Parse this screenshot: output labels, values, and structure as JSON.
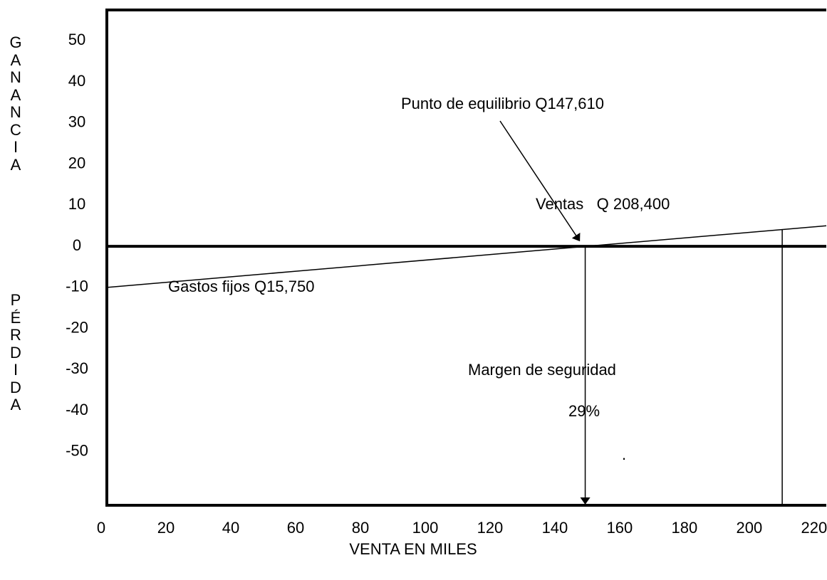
{
  "chart_data": {
    "type": "line",
    "xlabel": "VENTA EN MILES",
    "ylabel_top": "GANANCIA",
    "ylabel_bottom": "PÉRDIDA",
    "x": [
      0,
      222
    ],
    "series": [
      {
        "color": "#000000",
        "values": [
          -10,
          5
        ]
      }
    ],
    "xlim": [
      0,
      222
    ],
    "ylim": [
      -63,
      57.5
    ],
    "xticks": [
      0,
      20,
      40,
      60,
      80,
      100,
      120,
      140,
      160,
      180,
      200,
      220
    ],
    "yticks": [
      50,
      40,
      30,
      20,
      10,
      0,
      -10,
      -20,
      -30,
      -40,
      -50
    ],
    "reference_lines_x": [
      147.61,
      208.4
    ],
    "annotations": [
      "Punto de equilibrio Q147,610",
      "Ventas   Q 208,400",
      "Gastos fijos Q15,750",
      "Margen de seguridad",
      "29%",
      "."
    ]
  }
}
